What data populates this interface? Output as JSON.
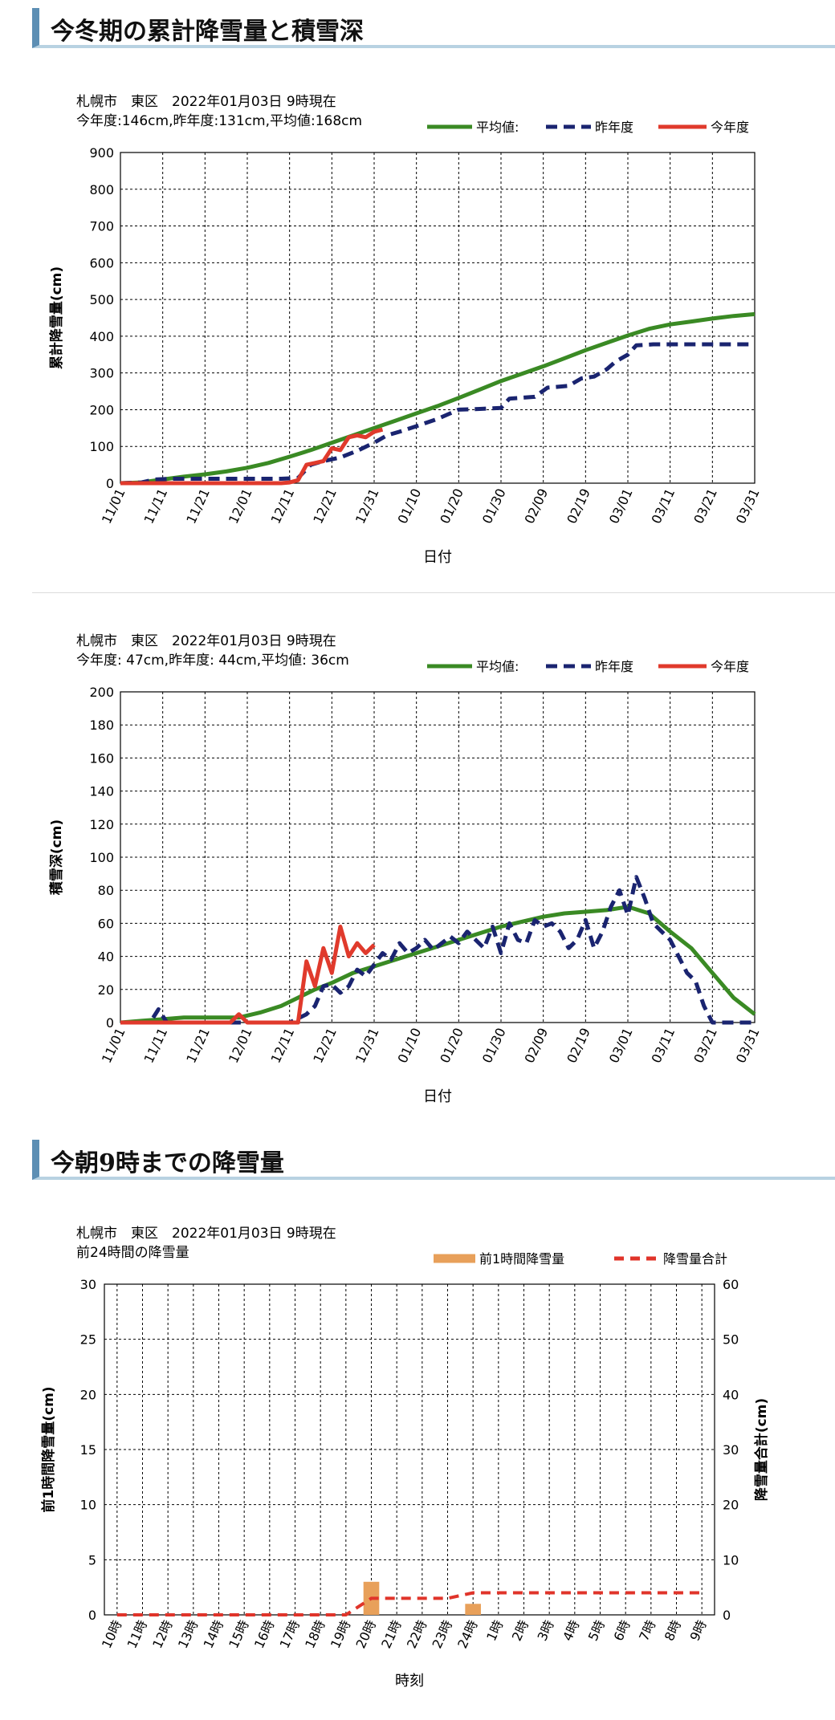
{
  "sections": {
    "cumulative_heading": "今冬期の累計降雪量と積雪深",
    "morning_heading": "今朝9時までの降雪量"
  },
  "legend": {
    "average": "平均値:",
    "last_year": "昨年度",
    "this_year": "今年度",
    "hourly": "前1時間降雪量",
    "total": "降雪量合計"
  },
  "colors": {
    "average": "#3a8a24",
    "last_year": "#1a2470",
    "this_year": "#e03a2c",
    "hourly_bar": "#e8a05a",
    "total_line": "#e0342a"
  },
  "chart_data": [
    {
      "type": "line",
      "header_line1": "札幌市　東区　2022年01月03日 9時現在",
      "header_line2": "今年度:146cm,昨年度:131cm,平均値:168cm",
      "xlabel": "日付",
      "ylabel": "累計降雪量(cm)",
      "ylim": [
        0,
        900
      ],
      "yticks": [
        "0",
        "100",
        "200",
        "300",
        "400",
        "500",
        "600",
        "700",
        "800",
        "900"
      ],
      "xticks": [
        "11/01",
        "11/11",
        "11/21",
        "12/01",
        "12/11",
        "12/21",
        "12/31",
        "01/10",
        "01/20",
        "01/30",
        "02/09",
        "02/19",
        "03/01",
        "03/11",
        "03/21",
        "03/31"
      ],
      "x_range_days": [
        0,
        150
      ],
      "grid": true,
      "legend_position": "top-right",
      "series": [
        {
          "name": "平均値",
          "style": "solid",
          "points": [
            [
              0,
              0
            ],
            [
              5,
              2
            ],
            [
              10,
              10
            ],
            [
              15,
              18
            ],
            [
              20,
              24
            ],
            [
              25,
              32
            ],
            [
              30,
              42
            ],
            [
              35,
              55
            ],
            [
              40,
              72
            ],
            [
              45,
              90
            ],
            [
              50,
              110
            ],
            [
              55,
              130
            ],
            [
              60,
              150
            ],
            [
              65,
              170
            ],
            [
              70,
              190
            ],
            [
              75,
              210
            ],
            [
              80,
              232
            ],
            [
              85,
              255
            ],
            [
              90,
              278
            ],
            [
              95,
              298
            ],
            [
              100,
              318
            ],
            [
              105,
              340
            ],
            [
              110,
              362
            ],
            [
              115,
              382
            ],
            [
              120,
              402
            ],
            [
              125,
              420
            ],
            [
              130,
              432
            ],
            [
              135,
              440
            ],
            [
              140,
              448
            ],
            [
              145,
              455
            ],
            [
              150,
              460
            ]
          ]
        },
        {
          "name": "昨年度",
          "style": "dashed",
          "points": [
            [
              0,
              0
            ],
            [
              5,
              2
            ],
            [
              8,
              10
            ],
            [
              12,
              12
            ],
            [
              20,
              12
            ],
            [
              30,
              12
            ],
            [
              38,
              12
            ],
            [
              42,
              14
            ],
            [
              45,
              50
            ],
            [
              48,
              60
            ],
            [
              52,
              70
            ],
            [
              56,
              88
            ],
            [
              60,
              110
            ],
            [
              63,
              130
            ],
            [
              66,
              140
            ],
            [
              70,
              155
            ],
            [
              75,
              175
            ],
            [
              80,
              200
            ],
            [
              85,
              202
            ],
            [
              90,
              205
            ],
            [
              92,
              230
            ],
            [
              98,
              235
            ],
            [
              101,
              260
            ],
            [
              106,
              265
            ],
            [
              109,
              285
            ],
            [
              112,
              290
            ],
            [
              115,
              310
            ],
            [
              117,
              330
            ],
            [
              120,
              350
            ],
            [
              122,
              375
            ],
            [
              126,
              378
            ],
            [
              150,
              378
            ]
          ]
        },
        {
          "name": "今年度",
          "style": "solid",
          "points": [
            [
              0,
              0
            ],
            [
              10,
              0
            ],
            [
              20,
              0
            ],
            [
              30,
              0
            ],
            [
              38,
              0
            ],
            [
              40,
              2
            ],
            [
              42,
              8
            ],
            [
              44,
              50
            ],
            [
              46,
              55
            ],
            [
              48,
              60
            ],
            [
              50,
              95
            ],
            [
              52,
              90
            ],
            [
              54,
              125
            ],
            [
              56,
              130
            ],
            [
              58,
              125
            ],
            [
              60,
              140
            ],
            [
              62,
              146
            ]
          ]
        }
      ]
    },
    {
      "type": "line",
      "header_line1": "札幌市　東区　2022年01月03日 9時現在",
      "header_line2": "今年度: 47cm,昨年度: 44cm,平均値: 36cm",
      "xlabel": "日付",
      "ylabel": "積雪深(cm)",
      "ylim": [
        0,
        200
      ],
      "yticks": [
        "0",
        "20",
        "40",
        "60",
        "80",
        "100",
        "120",
        "140",
        "160",
        "180",
        "200"
      ],
      "xticks": [
        "11/01",
        "11/11",
        "11/21",
        "12/01",
        "12/11",
        "12/21",
        "12/31",
        "01/10",
        "01/20",
        "01/30",
        "02/09",
        "02/19",
        "03/01",
        "03/11",
        "03/21",
        "03/31"
      ],
      "x_range_days": [
        0,
        150
      ],
      "grid": true,
      "legend_position": "top-right",
      "series": [
        {
          "name": "平均値",
          "style": "solid",
          "points": [
            [
              0,
              0
            ],
            [
              5,
              1
            ],
            [
              10,
              2
            ],
            [
              15,
              3
            ],
            [
              20,
              3
            ],
            [
              28,
              3
            ],
            [
              33,
              6
            ],
            [
              38,
              10
            ],
            [
              42,
              15
            ],
            [
              46,
              20
            ],
            [
              50,
              24
            ],
            [
              55,
              30
            ],
            [
              60,
              34
            ],
            [
              65,
              38
            ],
            [
              70,
              42
            ],
            [
              75,
              46
            ],
            [
              80,
              50
            ],
            [
              85,
              54
            ],
            [
              90,
              58
            ],
            [
              95,
              61
            ],
            [
              100,
              64
            ],
            [
              105,
              66
            ],
            [
              110,
              67
            ],
            [
              115,
              68
            ],
            [
              120,
              70
            ],
            [
              125,
              66
            ],
            [
              130,
              55
            ],
            [
              135,
              45
            ],
            [
              140,
              30
            ],
            [
              145,
              15
            ],
            [
              150,
              5
            ]
          ]
        },
        {
          "name": "昨年度",
          "style": "dashed",
          "points": [
            [
              0,
              0
            ],
            [
              7,
              0
            ],
            [
              9,
              8
            ],
            [
              11,
              0
            ],
            [
              20,
              0
            ],
            [
              30,
              0
            ],
            [
              40,
              0
            ],
            [
              44,
              5
            ],
            [
              46,
              10
            ],
            [
              48,
              22
            ],
            [
              50,
              23
            ],
            [
              52,
              18
            ],
            [
              54,
              22
            ],
            [
              56,
              32
            ],
            [
              58,
              28
            ],
            [
              60,
              35
            ],
            [
              62,
              42
            ],
            [
              64,
              38
            ],
            [
              66,
              48
            ],
            [
              68,
              42
            ],
            [
              70,
              45
            ],
            [
              72,
              50
            ],
            [
              74,
              44
            ],
            [
              76,
              48
            ],
            [
              78,
              52
            ],
            [
              80,
              48
            ],
            [
              82,
              55
            ],
            [
              84,
              50
            ],
            [
              86,
              45
            ],
            [
              88,
              58
            ],
            [
              90,
              42
            ],
            [
              92,
              60
            ],
            [
              94,
              50
            ],
            [
              96,
              48
            ],
            [
              98,
              62
            ],
            [
              100,
              58
            ],
            [
              102,
              60
            ],
            [
              104,
              55
            ],
            [
              106,
              45
            ],
            [
              108,
              50
            ],
            [
              110,
              62
            ],
            [
              112,
              45
            ],
            [
              114,
              55
            ],
            [
              116,
              70
            ],
            [
              118,
              80
            ],
            [
              120,
              65
            ],
            [
              122,
              88
            ],
            [
              124,
              75
            ],
            [
              126,
              60
            ],
            [
              128,
              55
            ],
            [
              130,
              50
            ],
            [
              132,
              40
            ],
            [
              134,
              30
            ],
            [
              136,
              25
            ],
            [
              138,
              10
            ],
            [
              140,
              0
            ],
            [
              150,
              0
            ]
          ]
        },
        {
          "name": "今年度",
          "style": "solid",
          "points": [
            [
              0,
              0
            ],
            [
              10,
              0
            ],
            [
              20,
              0
            ],
            [
              26,
              0
            ],
            [
              28,
              5
            ],
            [
              30,
              0
            ],
            [
              40,
              0
            ],
            [
              42,
              0
            ],
            [
              44,
              37
            ],
            [
              46,
              22
            ],
            [
              48,
              45
            ],
            [
              50,
              30
            ],
            [
              52,
              58
            ],
            [
              54,
              40
            ],
            [
              56,
              48
            ],
            [
              58,
              42
            ],
            [
              60,
              47
            ]
          ]
        }
      ]
    },
    {
      "type": "bar+line",
      "header_line1": "札幌市　東区　2022年01月03日 9時現在",
      "header_line2": "前24時間の降雪量",
      "xlabel": "時刻",
      "ylabel": "前1時間降雪量(cm)",
      "y2label": "降雪量合計(cm)",
      "ylim": [
        0,
        30
      ],
      "y2lim": [
        0,
        60
      ],
      "yticks": [
        "0",
        "5",
        "10",
        "15",
        "20",
        "25",
        "30"
      ],
      "y2ticks": [
        "0",
        "10",
        "20",
        "30",
        "40",
        "50",
        "60"
      ],
      "categories": [
        "10時",
        "11時",
        "12時",
        "13時",
        "14時",
        "15時",
        "16時",
        "17時",
        "18時",
        "19時",
        "20時",
        "21時",
        "22時",
        "23時",
        "24時",
        "1時",
        "2時",
        "3時",
        "4時",
        "5時",
        "6時",
        "7時",
        "8時",
        "9時"
      ],
      "grid": true,
      "legend_position": "top-right",
      "series": [
        {
          "name": "前1時間降雪量",
          "kind": "bar",
          "axis": "left",
          "values": [
            0,
            0,
            0,
            0,
            0,
            0,
            0,
            0,
            0,
            0,
            3,
            0,
            0,
            0,
            1,
            0,
            0,
            0,
            0,
            0,
            0,
            0,
            0,
            0
          ]
        },
        {
          "name": "降雪量合計",
          "kind": "line",
          "style": "dashed",
          "axis": "right",
          "values": [
            0,
            0,
            0,
            0,
            0,
            0,
            0,
            0,
            0,
            0,
            3,
            3,
            3,
            3,
            4,
            4,
            4,
            4,
            4,
            4,
            4,
            4,
            4,
            4
          ]
        }
      ]
    }
  ]
}
